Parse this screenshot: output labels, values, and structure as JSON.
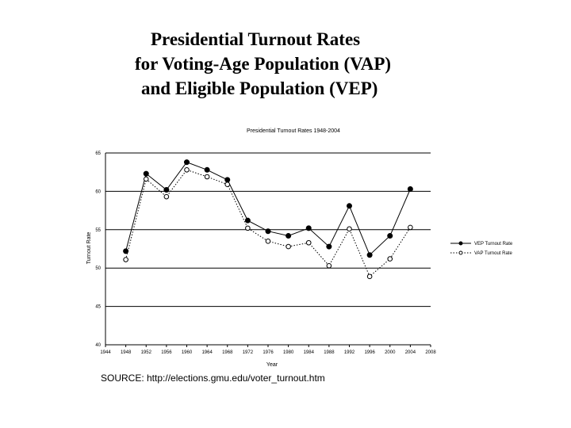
{
  "slide": {
    "title_lines": [
      "Presidential Turnout Rates",
      "for Voting-Age Population (VAP)",
      "and Eligible Population (VEP)"
    ],
    "source": "SOURCE: http://elections.gmu.edu/voter_turnout.htm"
  },
  "chart_data": {
    "type": "line",
    "title": "Presidential Turnout Rates 1948-2004",
    "xlabel": "Year",
    "ylabel": "Turnout Rate",
    "xlim": [
      1944,
      2008
    ],
    "ylim": [
      40,
      65
    ],
    "xticks": [
      1944,
      1948,
      1952,
      1956,
      1960,
      1964,
      1968,
      1972,
      1976,
      1980,
      1984,
      1988,
      1992,
      1996,
      2000,
      2004,
      2008
    ],
    "yticks": [
      40,
      45,
      50,
      55,
      60,
      65
    ],
    "grid": "horizontal",
    "legend_position": "right",
    "x": [
      1948,
      1952,
      1956,
      1960,
      1964,
      1968,
      1972,
      1976,
      1980,
      1984,
      1988,
      1992,
      1996,
      2000,
      2004
    ],
    "series": [
      {
        "name": "VEP Turnout Rate",
        "style": "solid-filled-dot",
        "color": "#000000",
        "values": [
          52.2,
          62.3,
          60.2,
          63.8,
          62.8,
          61.5,
          56.2,
          54.8,
          54.2,
          55.2,
          52.8,
          58.1,
          51.7,
          54.2,
          60.3
        ]
      },
      {
        "name": "VAP Turnout Rate",
        "style": "dotted-open-circle",
        "color": "#000000",
        "values": [
          51.1,
          61.6,
          59.3,
          62.8,
          61.9,
          60.9,
          55.2,
          53.5,
          52.8,
          53.3,
          50.3,
          55.1,
          48.9,
          51.2,
          55.3
        ]
      }
    ]
  }
}
